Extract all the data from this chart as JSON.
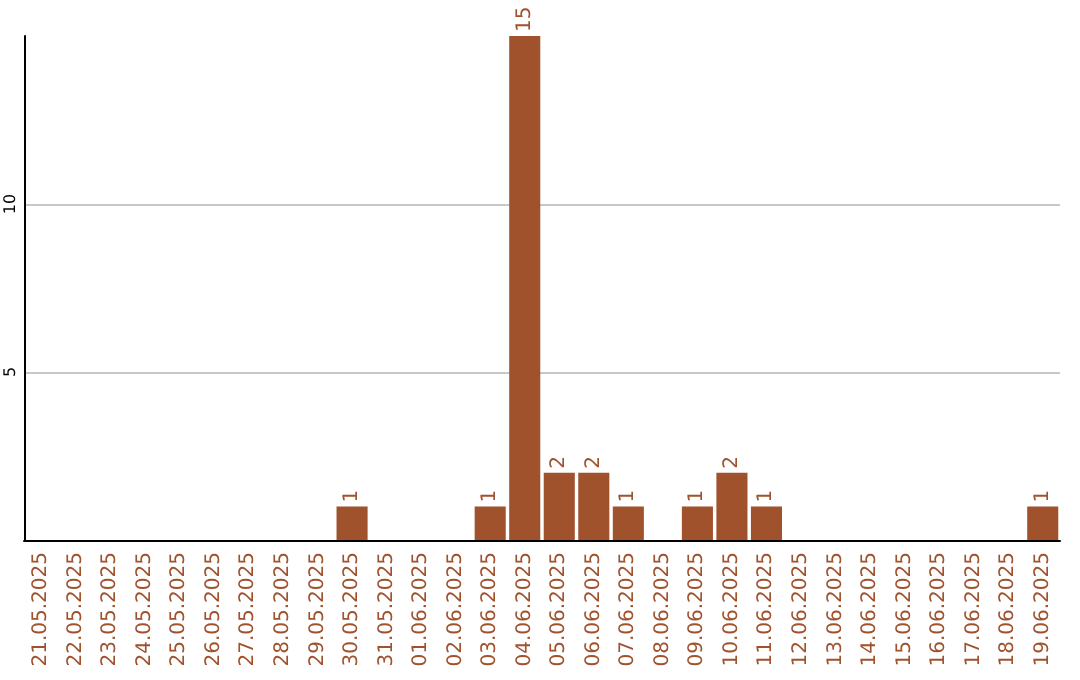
{
  "chart_data": {
    "type": "bar",
    "categories": [
      "21.05.2025",
      "22.05.2025",
      "23.05.2025",
      "24.05.2025",
      "25.05.2025",
      "26.05.2025",
      "27.05.2025",
      "28.05.2025",
      "29.05.2025",
      "30.05.2025",
      "31.05.2025",
      "01.06.2025",
      "02.06.2025",
      "03.06.2025",
      "04.06.2025",
      "05.06.2025",
      "06.06.2025",
      "07.06.2025",
      "08.06.2025",
      "09.06.2025",
      "10.06.2025",
      "11.06.2025",
      "12.06.2025",
      "13.06.2025",
      "14.06.2025",
      "15.06.2025",
      "16.06.2025",
      "17.06.2025",
      "18.06.2025",
      "19.06.2025"
    ],
    "values": [
      0,
      0,
      0,
      0,
      0,
      0,
      0,
      0,
      0,
      1,
      0,
      0,
      0,
      1,
      15,
      2,
      2,
      1,
      0,
      1,
      2,
      1,
      0,
      0,
      0,
      0,
      0,
      0,
      0,
      1
    ],
    "value_labels": [
      null,
      null,
      null,
      null,
      null,
      null,
      null,
      null,
      null,
      "1",
      null,
      null,
      null,
      "1",
      "15",
      "2",
      "2",
      "1",
      null,
      "1",
      "2",
      "1",
      null,
      null,
      null,
      null,
      null,
      null,
      null,
      "1"
    ],
    "color": "#a0522d",
    "ylim": [
      0,
      15
    ],
    "yticks": [
      5,
      10
    ],
    "grid": "y"
  }
}
